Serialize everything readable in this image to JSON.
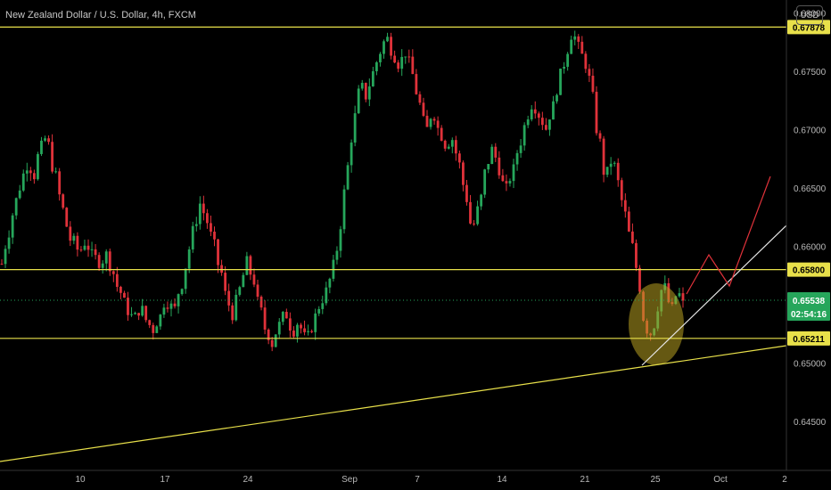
{
  "header": {
    "title": "New Zealand Dollar / U.S. Dollar, 4h, FXCM",
    "currency": "USD"
  },
  "colors": {
    "up": "#26a65b",
    "down": "#e0323a",
    "level": "#e8e04a",
    "trend_white": "#e6e6e6",
    "projection": "#e0323a",
    "highlight": "#b8a020",
    "axis_text": "#b8b8b8"
  },
  "chart_data": {
    "type": "candlestick",
    "symbol": "NZDUSD",
    "timeframe": "4h",
    "ylim": [
      0.6408,
      0.6811
    ],
    "y_ticks": [
      "0.68000",
      "0.67500",
      "0.67000",
      "0.66500",
      "0.66000",
      "0.65500",
      "0.65000",
      "0.64500"
    ],
    "x_ticks": [
      "10",
      "17",
      "24",
      "Sep",
      "7",
      "14",
      "21",
      "25",
      "Oct",
      "2"
    ],
    "levels": [
      {
        "label": "0.67878",
        "value": 0.67878
      },
      {
        "label": "0.65800",
        "value": 0.658
      },
      {
        "label": "0.65211",
        "value": 0.65211
      }
    ],
    "current_price": {
      "label": "0.65538",
      "value": 0.65538,
      "countdown": "02:54:16"
    },
    "trendline_note": "rising support and short-term up-channel with projected path",
    "price_path": [
      [
        0.6585,
        0.66
      ],
      [
        0.661,
        0.6625
      ],
      [
        0.6635,
        0.6648
      ],
      [
        0.6655,
        0.6668
      ],
      [
        0.6672,
        0.6665
      ],
      [
        0.666,
        0.668
      ],
      [
        0.6685,
        0.6692
      ],
      [
        0.6688,
        0.667
      ],
      [
        0.6665,
        0.6645
      ],
      [
        0.664,
        0.662
      ],
      [
        0.6615,
        0.66
      ],
      [
        0.6605,
        0.6595
      ],
      [
        0.6598,
        0.6604
      ],
      [
        0.66,
        0.6592
      ],
      [
        0.659,
        0.6588
      ],
      [
        0.6585,
        0.6595
      ],
      [
        0.659,
        0.658
      ],
      [
        0.6575,
        0.6562
      ],
      [
        0.656,
        0.655
      ],
      [
        0.6545,
        0.654
      ],
      [
        0.6538,
        0.6545
      ],
      [
        0.6548,
        0.6538
      ],
      [
        0.6535,
        0.653
      ],
      [
        0.6528,
        0.654
      ],
      [
        0.654,
        0.6555
      ],
      [
        0.6552,
        0.6548
      ],
      [
        0.6545,
        0.656
      ],
      [
        0.6565,
        0.658
      ],
      [
        0.659,
        0.661
      ],
      [
        0.6615,
        0.663
      ],
      [
        0.664,
        0.6625
      ],
      [
        0.662,
        0.6608
      ],
      [
        0.66,
        0.6585
      ],
      [
        0.658,
        0.656
      ],
      [
        0.6555,
        0.654
      ],
      [
        0.6545,
        0.656
      ],
      [
        0.6565,
        0.658
      ],
      [
        0.6588,
        0.6575
      ],
      [
        0.657,
        0.6552
      ],
      [
        0.6545,
        0.653
      ],
      [
        0.6528,
        0.6515
      ],
      [
        0.652,
        0.6535
      ],
      [
        0.653,
        0.6545
      ],
      [
        0.654,
        0.653
      ],
      [
        0.6528,
        0.6535
      ],
      [
        0.653,
        0.6522
      ],
      [
        0.652,
        0.653
      ],
      [
        0.6535,
        0.6548
      ],
      [
        0.655,
        0.656
      ],
      [
        0.6562,
        0.6575
      ],
      [
        0.6585,
        0.66
      ],
      [
        0.662,
        0.6645
      ],
      [
        0.6665,
        0.669
      ],
      [
        0.6705,
        0.6725
      ],
      [
        0.674,
        0.673
      ],
      [
        0.6728,
        0.6745
      ],
      [
        0.675,
        0.676
      ],
      [
        0.6768,
        0.6775
      ],
      [
        0.6778,
        0.677
      ],
      [
        0.6765,
        0.6758
      ],
      [
        0.6755,
        0.6768
      ],
      [
        0.6765,
        0.675
      ],
      [
        0.6745,
        0.6728
      ],
      [
        0.672,
        0.6705
      ],
      [
        0.67,
        0.6712
      ],
      [
        0.6715,
        0.6702
      ],
      [
        0.6698,
        0.669
      ],
      [
        0.6685,
        0.6695
      ],
      [
        0.669,
        0.6675
      ],
      [
        0.6668,
        0.665
      ],
      [
        0.664,
        0.662
      ],
      [
        0.6618,
        0.663
      ],
      [
        0.6635,
        0.666
      ],
      [
        0.6668,
        0.668
      ],
      [
        0.6685,
        0.667
      ],
      [
        0.6665,
        0.665
      ],
      [
        0.6648,
        0.666
      ],
      [
        0.6665,
        0.668
      ],
      [
        0.6688,
        0.67
      ],
      [
        0.671,
        0.672
      ],
      [
        0.6725,
        0.6715
      ],
      [
        0.6712,
        0.6705
      ],
      [
        0.67,
        0.6715
      ],
      [
        0.672,
        0.6735
      ],
      [
        0.6745,
        0.6755
      ],
      [
        0.6765,
        0.678
      ],
      [
        0.6785,
        0.6772
      ],
      [
        0.6768,
        0.676
      ],
      [
        0.6755,
        0.674
      ],
      [
        0.6725,
        0.67
      ],
      [
        0.669,
        0.6665
      ],
      [
        0.666,
        0.6672
      ],
      [
        0.6675,
        0.6658
      ],
      [
        0.665,
        0.663
      ],
      [
        0.6625,
        0.6605
      ],
      [
        0.6598,
        0.658
      ],
      [
        0.6565,
        0.654
      ],
      [
        0.653,
        0.6525
      ],
      [
        0.6528,
        0.6545
      ],
      [
        0.6555,
        0.657
      ],
      [
        0.656,
        0.6548
      ],
      [
        0.6545,
        0.656
      ],
      [
        0.6558,
        0.655
      ]
    ]
  }
}
